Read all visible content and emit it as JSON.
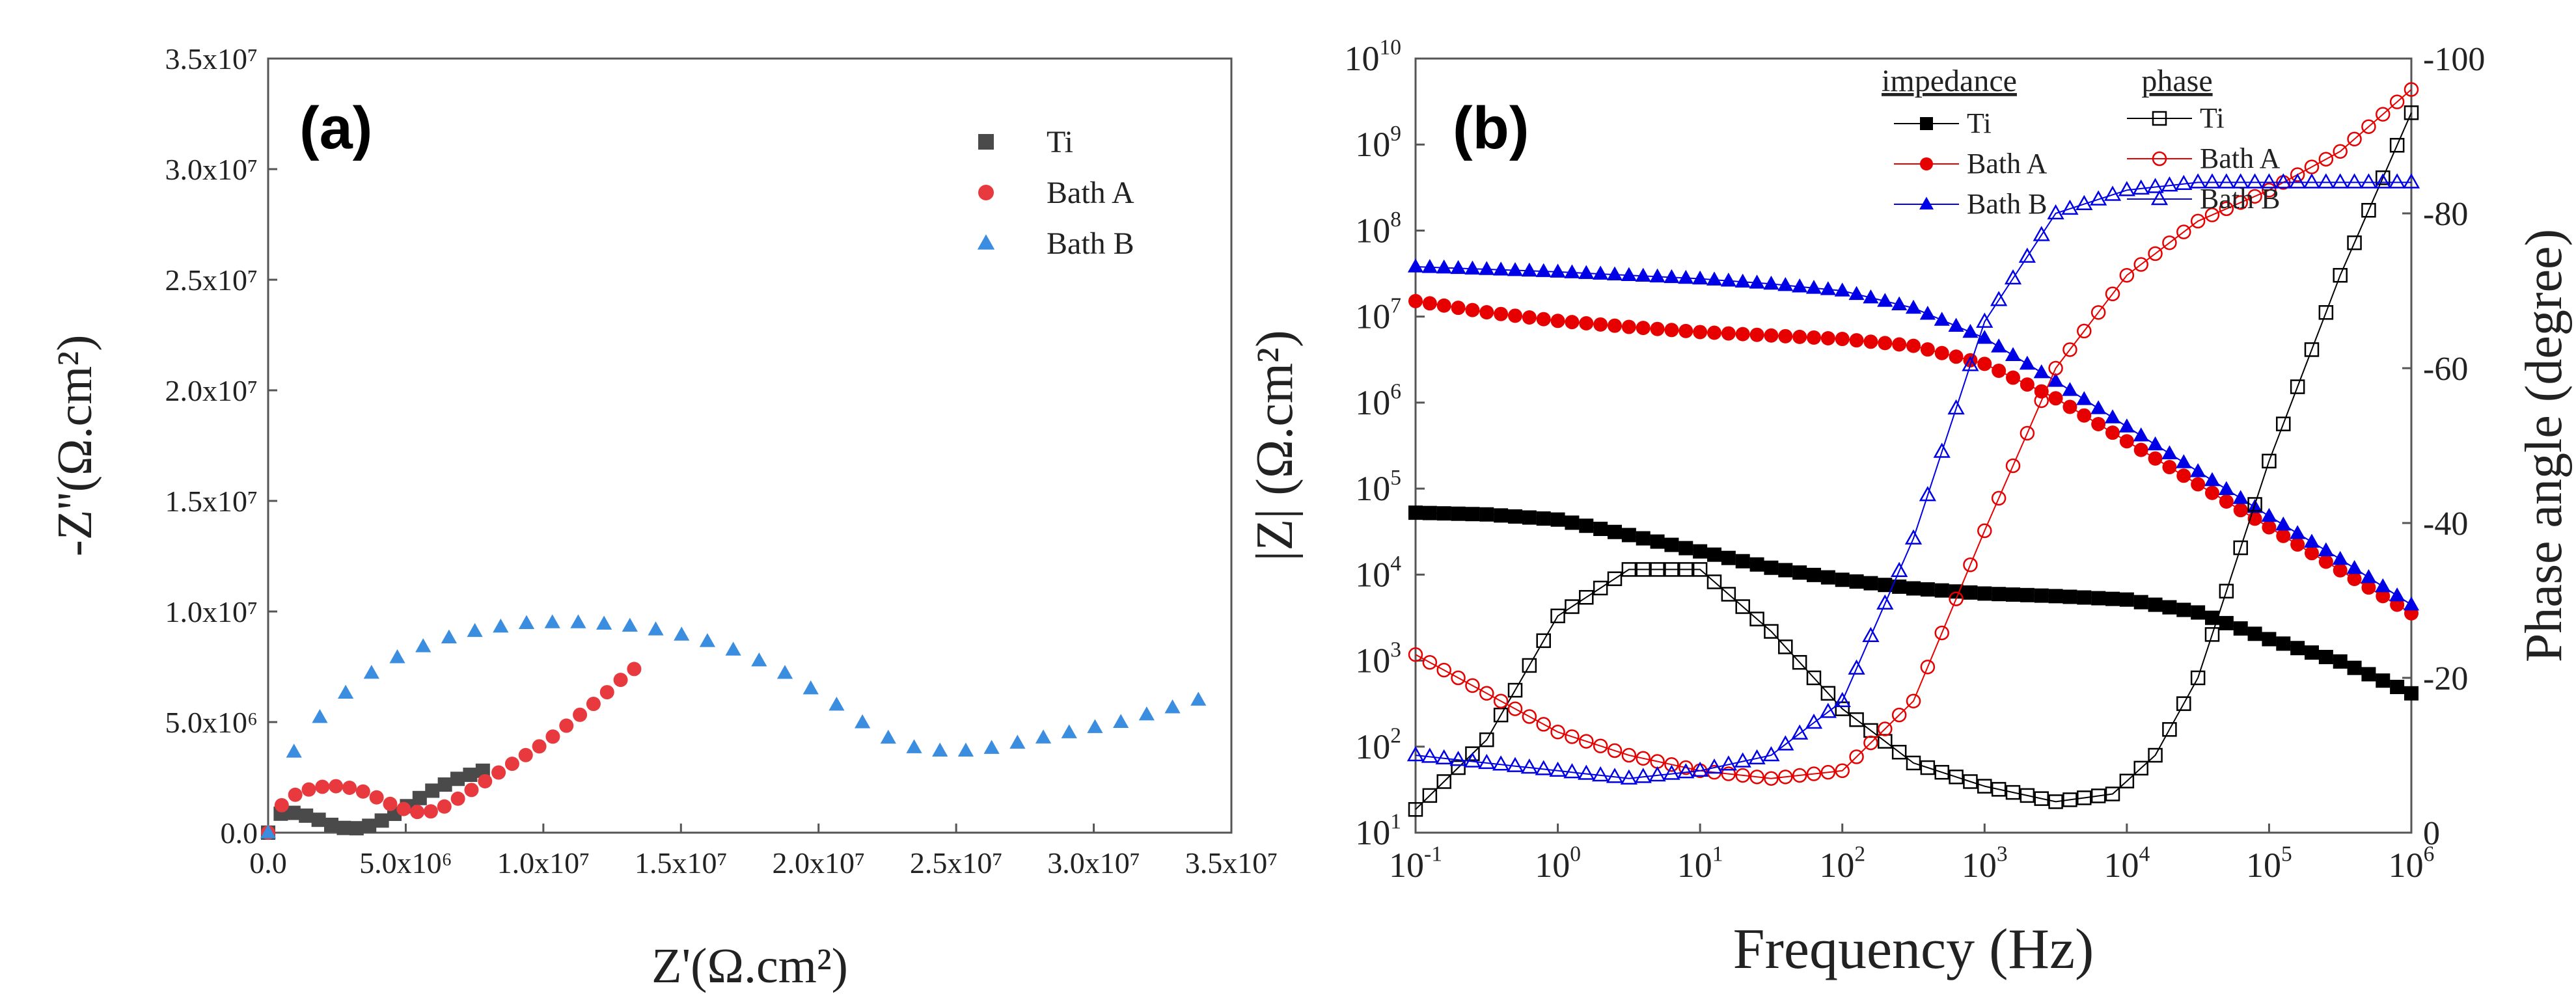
{
  "chart_data": [
    {
      "panel": "(a)",
      "type": "scatter",
      "xlabel": "Z'(Ω.cm²)",
      "ylabel": "-Z''(Ω.cm²)",
      "xlim": [
        0,
        35000000
      ],
      "ylim": [
        0,
        35000000
      ],
      "xticks": [
        {
          "value": 0,
          "label": "0.0"
        },
        {
          "value": 5000000,
          "label": "5.0x10⁶"
        },
        {
          "value": 10000000,
          "label": "1.0x10⁷"
        },
        {
          "value": 15000000,
          "label": "1.5x10⁷"
        },
        {
          "value": 20000000,
          "label": "2.0x10⁷"
        },
        {
          "value": 25000000,
          "label": "2.5x10⁷"
        },
        {
          "value": 30000000,
          "label": "3.0x10⁷"
        },
        {
          "value": 35000000,
          "label": "3.5x10⁷"
        }
      ],
      "yticks": [
        {
          "value": 0,
          "label": "0.0"
        },
        {
          "value": 5000000,
          "label": "5.0x10⁶"
        },
        {
          "value": 10000000,
          "label": "1.0x10⁷"
        },
        {
          "value": 15000000,
          "label": "1.5x10⁷"
        },
        {
          "value": 20000000,
          "label": "2.0x10⁷"
        },
        {
          "value": 25000000,
          "label": "2.5x10⁷"
        },
        {
          "value": 30000000,
          "label": "3.0x10⁷"
        },
        {
          "value": 35000000,
          "label": "3.5x10⁷"
        }
      ],
      "legend": [
        "Ti",
        "Bath A",
        "Bath B"
      ],
      "series": [
        {
          "name": "Ti",
          "color": "#4a4a4a",
          "marker": "square",
          "x": [
            0,
            200000,
            500000,
            900000,
            1300000,
            1800000,
            2300000,
            2800000,
            3300000,
            3800000,
            4300000,
            4800000,
            5300000,
            5800000,
            6300000,
            6800000,
            7300000,
            7800000
          ],
          "y": [
            0,
            600000,
            900000,
            900000,
            800000,
            600000,
            350000,
            200000,
            200000,
            350000,
            650000,
            1000000,
            1400000,
            1800000,
            2100000,
            2400000,
            2600000,
            2800000
          ]
        },
        {
          "name": "Bath A",
          "color": "#e8393e",
          "marker": "circle",
          "x": [
            0,
            300000,
            700000,
            1100000,
            1600000,
            2100000,
            2600000,
            3100000,
            3600000,
            4100000,
            4600000,
            5100000,
            5600000,
            6100000,
            6600000,
            7100000,
            7600000,
            8100000,
            8600000,
            9100000,
            9600000,
            10100000,
            10600000,
            11100000,
            11600000,
            12100000,
            12700000,
            13300000
          ],
          "y": [
            0,
            1000000,
            1500000,
            1800000,
            2000000,
            2100000,
            2100000,
            2000000,
            1800000,
            1500000,
            1200000,
            1000000,
            900000,
            1000000,
            1300000,
            1700000,
            2100000,
            2500000,
            2900000,
            3300000,
            3700000,
            4100000,
            4600000,
            5100000,
            5600000,
            6100000,
            6800000,
            7400000
          ]
        },
        {
          "name": "Bath B",
          "color": "#3b8de0",
          "marker": "triangle",
          "x": [
            0,
            200000,
            500000,
            1000000,
            1700000,
            2600000,
            3600000,
            4800000,
            6200000,
            7800000,
            9600000,
            11600000,
            13600000,
            15600000,
            17300000,
            18800000,
            20000000,
            21000000,
            21800000,
            22500000,
            23100000,
            23600000,
            24100000,
            24600000,
            25100000,
            25600000,
            26200000,
            27000000,
            27800000,
            28600000,
            29400000,
            30200000,
            31000000,
            31800000,
            32500000,
            33200000,
            33800000
          ],
          "y": [
            0,
            1500000,
            2600000,
            3800000,
            5000000,
            6100000,
            7100000,
            8000000,
            8700000,
            9200000,
            9500000,
            9500000,
            9300000,
            8800000,
            8100000,
            7200000,
            6300000,
            5500000,
            4800000,
            4300000,
            4000000,
            3800000,
            3700000,
            3700000,
            3700000,
            3700000,
            3800000,
            4000000,
            4200000,
            4400000,
            4600000,
            4800000,
            5000000,
            5300000,
            5500000,
            5800000,
            6000000
          ]
        }
      ]
    },
    {
      "panel": "(b)",
      "type": "line",
      "xlabel": "Frequency (Hz)",
      "ylabel": "|Z| (Ω.cm²)",
      "y2label": "Phase angle (degree)",
      "xscale": "log",
      "yscale": "log",
      "xlim": [
        0.1,
        1000000
      ],
      "ylim": [
        10,
        10000000000
      ],
      "y2lim": [
        0,
        -100
      ],
      "xticks": [
        {
          "value": 0.1,
          "base": "10",
          "exp": "-1"
        },
        {
          "value": 1,
          "base": "10",
          "exp": "0"
        },
        {
          "value": 10,
          "base": "10",
          "exp": "1"
        },
        {
          "value": 100,
          "base": "10",
          "exp": "2"
        },
        {
          "value": 1000,
          "base": "10",
          "exp": "3"
        },
        {
          "value": 10000,
          "base": "10",
          "exp": "4"
        },
        {
          "value": 100000,
          "base": "10",
          "exp": "5"
        },
        {
          "value": 1000000,
          "base": "10",
          "exp": "6"
        }
      ],
      "yticks": [
        {
          "value": 10,
          "base": "10",
          "exp": "1"
        },
        {
          "value": 100,
          "base": "10",
          "exp": "2"
        },
        {
          "value": 1000,
          "base": "10",
          "exp": "3"
        },
        {
          "value": 10000,
          "base": "10",
          "exp": "4"
        },
        {
          "value": 100000,
          "base": "10",
          "exp": "5"
        },
        {
          "value": 1000000,
          "base": "10",
          "exp": "6"
        },
        {
          "value": 10000000,
          "base": "10",
          "exp": "7"
        },
        {
          "value": 100000000,
          "base": "10",
          "exp": "8"
        },
        {
          "value": 1000000000,
          "base": "10",
          "exp": "9"
        },
        {
          "value": 10000000000,
          "base": "10",
          "exp": "10"
        }
      ],
      "y2ticks": [
        {
          "value": 0,
          "label": "0"
        },
        {
          "value": -20,
          "label": "-20"
        },
        {
          "value": -40,
          "label": "-40"
        },
        {
          "value": -60,
          "label": "-60"
        },
        {
          "value": -80,
          "label": "-80"
        },
        {
          "value": -100,
          "label": "-100"
        }
      ],
      "legend_headings": {
        "impedance": "impedance",
        "phase": "phase"
      },
      "impedance_series": [
        {
          "name": "Ti",
          "color": "#000000",
          "marker": "square-filled",
          "log_f": [
            -1,
            -0.5,
            0,
            0.5,
            1,
            1.5,
            2,
            2.5,
            3,
            3.5,
            4,
            4.5,
            5,
            5.5,
            6
          ],
          "log_z": [
            4.72,
            4.7,
            4.64,
            4.46,
            4.27,
            4.08,
            3.94,
            3.84,
            3.78,
            3.75,
            3.71,
            3.56,
            3.25,
            2.99,
            2.62
          ]
        },
        {
          "name": "Bath A",
          "color": "#e60000",
          "marker": "circle-filled",
          "log_f": [
            -1,
            -0.5,
            0,
            0.5,
            1,
            1.5,
            2,
            2.5,
            3,
            3.5,
            4,
            4.5,
            5,
            5.5,
            6
          ],
          "log_z": [
            7.18,
            7.05,
            6.95,
            6.88,
            6.82,
            6.78,
            6.74,
            6.66,
            6.45,
            6.05,
            5.55,
            5.05,
            4.55,
            4.05,
            3.55
          ]
        },
        {
          "name": "Bath B",
          "color": "#0000e6",
          "marker": "triangle-filled",
          "log_f": [
            -1,
            -0.5,
            0,
            0.5,
            1,
            1.5,
            2,
            2.5,
            3,
            3.5,
            4,
            4.5,
            5,
            5.5,
            6
          ],
          "log_z": [
            7.58,
            7.55,
            7.52,
            7.48,
            7.44,
            7.38,
            7.3,
            7.1,
            6.75,
            6.25,
            5.72,
            5.2,
            4.68,
            4.18,
            3.65
          ]
        }
      ],
      "phase_series": [
        {
          "name": "Ti",
          "color": "#000000",
          "marker": "square-open",
          "log_f": [
            -1,
            -0.5,
            0,
            0.5,
            1,
            1.5,
            2,
            2.5,
            3,
            3.5,
            3.9,
            4.2,
            4.5,
            5,
            5.5,
            6
          ],
          "phase": [
            -3,
            -12,
            -28,
            -34,
            -34,
            -26,
            -16,
            -9,
            -6,
            -4,
            -5,
            -10,
            -20,
            -48,
            -72,
            -93
          ]
        },
        {
          "name": "Bath A",
          "color": "#e60000",
          "marker": "circle-open",
          "log_f": [
            -1,
            -0.5,
            0,
            0.5,
            1,
            1.5,
            2,
            2.5,
            3,
            3.5,
            4,
            4.5,
            5,
            5.5,
            6
          ],
          "phase": [
            -23,
            -18,
            -13,
            -10,
            -8,
            -7,
            -8,
            -17,
            -39,
            -60,
            -72,
            -79,
            -83,
            -88,
            -96
          ]
        },
        {
          "name": "Bath B",
          "color": "#0000e6",
          "marker": "triangle-open",
          "log_f": [
            -1,
            -0.5,
            0,
            0.5,
            1,
            1.5,
            2,
            2.5,
            3,
            3.5,
            4,
            4.5,
            5,
            5.5,
            6
          ],
          "phase": [
            -10,
            -9,
            -8,
            -7,
            -8,
            -10,
            -17,
            -38,
            -66,
            -80,
            -83,
            -84,
            -84,
            -84,
            -84
          ]
        }
      ]
    }
  ]
}
